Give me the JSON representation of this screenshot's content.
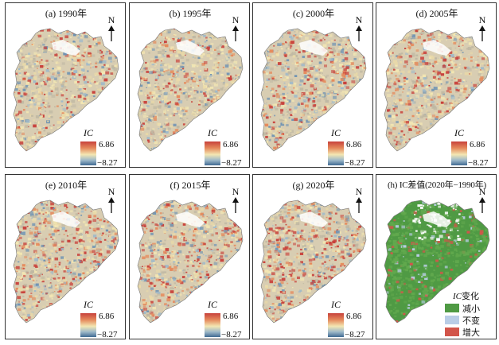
{
  "panels": [
    {
      "title": "(a) 1990年"
    },
    {
      "title": "(b) 1995年"
    },
    {
      "title": "(c) 2000年"
    },
    {
      "title": "(d) 2005年"
    },
    {
      "title": "(e) 2010年"
    },
    {
      "title": "(f) 2015年"
    },
    {
      "title": "(g) 2020年"
    },
    {
      "title": "(h) IC差值(2020年−1990年)"
    }
  ],
  "north_label": "N",
  "legend": {
    "title": "IC",
    "max": "6.86",
    "min": "−8.27",
    "colors": [
      "#c8413b",
      "#e58a5c",
      "#f3e7b3",
      "#9fb9c9",
      "#3f6a93"
    ]
  },
  "change_legend": {
    "title_italic": "IC",
    "title_rest": "变化",
    "items": [
      {
        "label": "减小",
        "color": "#4f9a44"
      },
      {
        "label": "不变",
        "color": "#b9cde6"
      },
      {
        "label": "增大",
        "color": "#d2554a"
      }
    ]
  }
}
